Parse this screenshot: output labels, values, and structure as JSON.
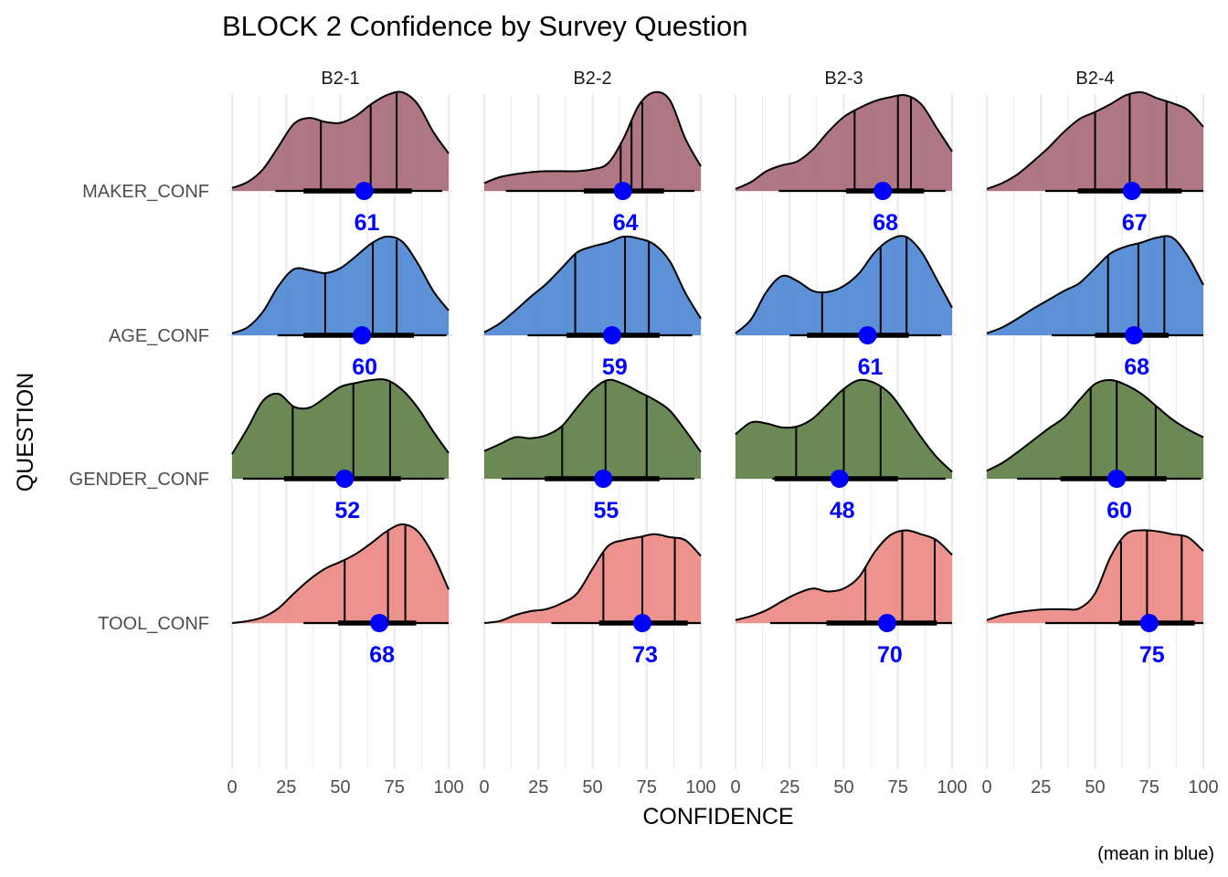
{
  "chart_data": {
    "type": "ridgeline",
    "title": "BLOCK 2 Confidence by Survey Question",
    "xlabel": "CONFIDENCE",
    "ylabel": "QUESTION",
    "caption": "(mean in blue)",
    "xlim": [
      0,
      100
    ],
    "x_ticks": [
      "0",
      "25",
      "50",
      "75",
      "100"
    ],
    "grid": true,
    "facets": [
      "B2-1",
      "B2-2",
      "B2-3",
      "B2-4"
    ],
    "questions": [
      "MAKER_CONF",
      "AGE_CONF",
      "GENDER_CONF",
      "TOOL_CONF"
    ],
    "fill_colors": {
      "MAKER_CONF": "#a86b79",
      "AGE_CONF": "#4f88d4",
      "GENDER_CONF": "#5e7f46",
      "TOOL_CONF": "#ec8a83"
    },
    "mean_color": "#0000ff",
    "series": [
      {
        "facet": "B2-1",
        "question": "MAKER_CONF",
        "mean": 61,
        "quantiles": [
          41,
          64,
          76
        ],
        "interval_66": [
          33,
          83
        ],
        "interval_95": [
          20,
          97
        ],
        "density": [
          0.03,
          0.09,
          0.22,
          0.45,
          0.68,
          0.74,
          0.7,
          0.69,
          0.76,
          0.88,
          0.97,
          1.0,
          0.88,
          0.6,
          0.38
        ]
      },
      {
        "facet": "B2-1",
        "question": "AGE_CONF",
        "mean": 60,
        "quantiles": [
          43,
          65,
          76
        ],
        "interval_66": [
          33,
          84
        ],
        "interval_95": [
          21,
          99
        ],
        "density": [
          0.02,
          0.08,
          0.24,
          0.5,
          0.67,
          0.66,
          0.63,
          0.68,
          0.8,
          0.93,
          1.0,
          0.95,
          0.73,
          0.45,
          0.25
        ]
      },
      {
        "facet": "B2-1",
        "question": "GENDER_CONF",
        "mean": 52,
        "quantiles": [
          28,
          56,
          73
        ],
        "interval_66": [
          24,
          78
        ],
        "interval_95": [
          5,
          98
        ],
        "density": [
          0.25,
          0.51,
          0.79,
          0.86,
          0.73,
          0.72,
          0.82,
          0.93,
          0.97,
          1.0,
          1.0,
          0.9,
          0.72,
          0.48,
          0.26
        ]
      },
      {
        "facet": "B2-1",
        "question": "TOOL_CONF",
        "mean": 68,
        "quantiles": [
          52,
          72,
          80
        ],
        "interval_66": [
          49,
          85
        ],
        "interval_95": [
          33,
          100
        ],
        "density": [
          0.0,
          0.02,
          0.06,
          0.15,
          0.3,
          0.44,
          0.55,
          0.62,
          0.7,
          0.81,
          0.93,
          1.0,
          0.93,
          0.69,
          0.34
        ]
      },
      {
        "facet": "B2-2",
        "question": "MAKER_CONF",
        "mean": 64,
        "quantiles": [
          63,
          68,
          73
        ],
        "interval_66": [
          46,
          83
        ],
        "interval_95": [
          10,
          97
        ],
        "density": [
          0.08,
          0.14,
          0.17,
          0.19,
          0.2,
          0.2,
          0.2,
          0.22,
          0.28,
          0.53,
          0.87,
          1.0,
          0.92,
          0.53,
          0.25
        ]
      },
      {
        "facet": "B2-2",
        "question": "AGE_CONF",
        "mean": 59,
        "quantiles": [
          42,
          65,
          76
        ],
        "interval_66": [
          38,
          81
        ],
        "interval_95": [
          20,
          96
        ],
        "density": [
          0.03,
          0.12,
          0.25,
          0.39,
          0.52,
          0.68,
          0.84,
          0.9,
          0.94,
          1.0,
          0.98,
          0.92,
          0.75,
          0.43,
          0.17
        ]
      },
      {
        "facet": "B2-2",
        "question": "GENDER_CONF",
        "mean": 55,
        "quantiles": [
          36,
          56,
          75
        ],
        "interval_66": [
          28,
          81
        ],
        "interval_95": [
          8,
          97
        ],
        "density": [
          0.28,
          0.35,
          0.42,
          0.41,
          0.44,
          0.53,
          0.72,
          0.9,
          1.0,
          0.96,
          0.88,
          0.8,
          0.69,
          0.49,
          0.27
        ]
      },
      {
        "facet": "B2-2",
        "question": "TOOL_CONF",
        "mean": 73,
        "quantiles": [
          55,
          73,
          88
        ],
        "interval_66": [
          53,
          94
        ],
        "interval_95": [
          31,
          100
        ],
        "density": [
          0.0,
          0.02,
          0.08,
          0.12,
          0.14,
          0.2,
          0.3,
          0.55,
          0.78,
          0.84,
          0.87,
          0.9,
          0.87,
          0.84,
          0.68
        ]
      },
      {
        "facet": "B2-3",
        "question": "MAKER_CONF",
        "mean": 68,
        "quantiles": [
          55,
          75,
          81
        ],
        "interval_66": [
          51,
          87
        ],
        "interval_95": [
          20,
          97
        ],
        "density": [
          0.02,
          0.09,
          0.2,
          0.26,
          0.3,
          0.42,
          0.6,
          0.75,
          0.84,
          0.91,
          0.95,
          0.97,
          0.88,
          0.64,
          0.4
        ]
      },
      {
        "facet": "B2-3",
        "question": "AGE_CONF",
        "mean": 61,
        "quantiles": [
          40,
          67,
          79
        ],
        "interval_66": [
          33,
          80
        ],
        "interval_95": [
          25,
          95
        ],
        "density": [
          0.02,
          0.16,
          0.44,
          0.6,
          0.55,
          0.45,
          0.44,
          0.5,
          0.63,
          0.84,
          0.97,
          1.0,
          0.85,
          0.57,
          0.28
        ]
      },
      {
        "facet": "B2-3",
        "question": "GENDER_CONF",
        "mean": 48,
        "quantiles": [
          28,
          50,
          67
        ],
        "interval_66": [
          18,
          75
        ],
        "interval_95": [
          17,
          97
        ],
        "density": [
          0.45,
          0.57,
          0.56,
          0.52,
          0.53,
          0.61,
          0.76,
          0.91,
          1.0,
          0.97,
          0.86,
          0.65,
          0.42,
          0.22,
          0.07
        ]
      },
      {
        "facet": "B2-3",
        "question": "TOOL_CONF",
        "mean": 70,
        "quantiles": [
          60,
          77,
          92
        ],
        "interval_66": [
          42,
          93
        ],
        "interval_95": [
          16,
          100
        ],
        "density": [
          0.03,
          0.07,
          0.13,
          0.22,
          0.3,
          0.35,
          0.32,
          0.35,
          0.47,
          0.72,
          0.89,
          0.94,
          0.9,
          0.84,
          0.69
        ]
      },
      {
        "facet": "B2-4",
        "question": "MAKER_CONF",
        "mean": 67,
        "quantiles": [
          50,
          66,
          83
        ],
        "interval_66": [
          42,
          90
        ],
        "interval_95": [
          27,
          100
        ],
        "density": [
          0.02,
          0.08,
          0.17,
          0.3,
          0.44,
          0.6,
          0.73,
          0.8,
          0.88,
          0.97,
          1.0,
          0.94,
          0.89,
          0.82,
          0.65
        ]
      },
      {
        "facet": "B2-4",
        "question": "AGE_CONF",
        "mean": 68,
        "quantiles": [
          56,
          70,
          82
        ],
        "interval_66": [
          50,
          84
        ],
        "interval_95": [
          30,
          100
        ],
        "density": [
          0.02,
          0.08,
          0.17,
          0.27,
          0.36,
          0.45,
          0.53,
          0.68,
          0.83,
          0.9,
          0.94,
          0.99,
          0.99,
          0.8,
          0.51
        ]
      },
      {
        "facet": "B2-4",
        "question": "GENDER_CONF",
        "mean": 60,
        "quantiles": [
          48,
          60,
          78
        ],
        "interval_66": [
          34,
          83
        ],
        "interval_95": [
          14,
          99
        ],
        "density": [
          0.08,
          0.16,
          0.27,
          0.39,
          0.51,
          0.62,
          0.8,
          0.96,
          1.0,
          0.95,
          0.86,
          0.73,
          0.6,
          0.5,
          0.42
        ]
      },
      {
        "facet": "B2-4",
        "question": "TOOL_CONF",
        "mean": 75,
        "quantiles": [
          62,
          74,
          90
        ],
        "interval_66": [
          61,
          96
        ],
        "interval_95": [
          27,
          100
        ],
        "density": [
          0.03,
          0.08,
          0.11,
          0.13,
          0.14,
          0.14,
          0.15,
          0.3,
          0.67,
          0.9,
          0.94,
          0.93,
          0.9,
          0.87,
          0.73
        ]
      }
    ]
  }
}
